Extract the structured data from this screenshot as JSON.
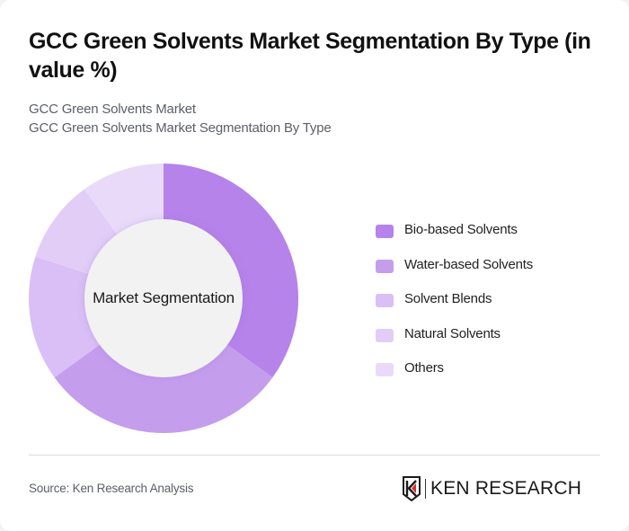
{
  "header": {
    "title": "GCC Green Solvents Market Segmentation By Type (in value %)",
    "subtitle_line1": "GCC Green Solvents Market",
    "subtitle_line2": "GCC Green Solvents Market Segmentation By Type"
  },
  "chart": {
    "center_label": "Market Segmentation"
  },
  "legend": {
    "items": [
      {
        "label": "Bio-based Solvents",
        "color": "#b583ea"
      },
      {
        "label": "Water-based Solvents",
        "color": "#c59ded"
      },
      {
        "label": "Solvent Blends",
        "color": "#d9bff5"
      },
      {
        "label": "Natural Solvents",
        "color": "#e2cdf7"
      },
      {
        "label": "Others",
        "color": "#e9dafa"
      }
    ]
  },
  "footer": {
    "source": "Source: Ken Research Analysis",
    "logo_text": "KEN RESEARCH"
  },
  "chart_data": {
    "type": "pie",
    "subtype": "donut",
    "title": "GCC Green Solvents Market Segmentation By Type (in value %)",
    "subtitle": [
      "GCC Green Solvents Market",
      "GCC Green Solvents Market Segmentation By Type"
    ],
    "center_label": "Market Segmentation",
    "categories": [
      "Bio-based Solvents",
      "Water-based Solvents",
      "Solvent Blends",
      "Natural Solvents",
      "Others"
    ],
    "values": [
      35,
      30,
      15,
      10,
      10
    ],
    "colors": [
      "#b583ea",
      "#c59ded",
      "#d9bff5",
      "#e2cdf7",
      "#e9dafa"
    ],
    "unit": "%",
    "start_angle": "top, clockwise",
    "legend_position": "right",
    "data_labels": false
  }
}
